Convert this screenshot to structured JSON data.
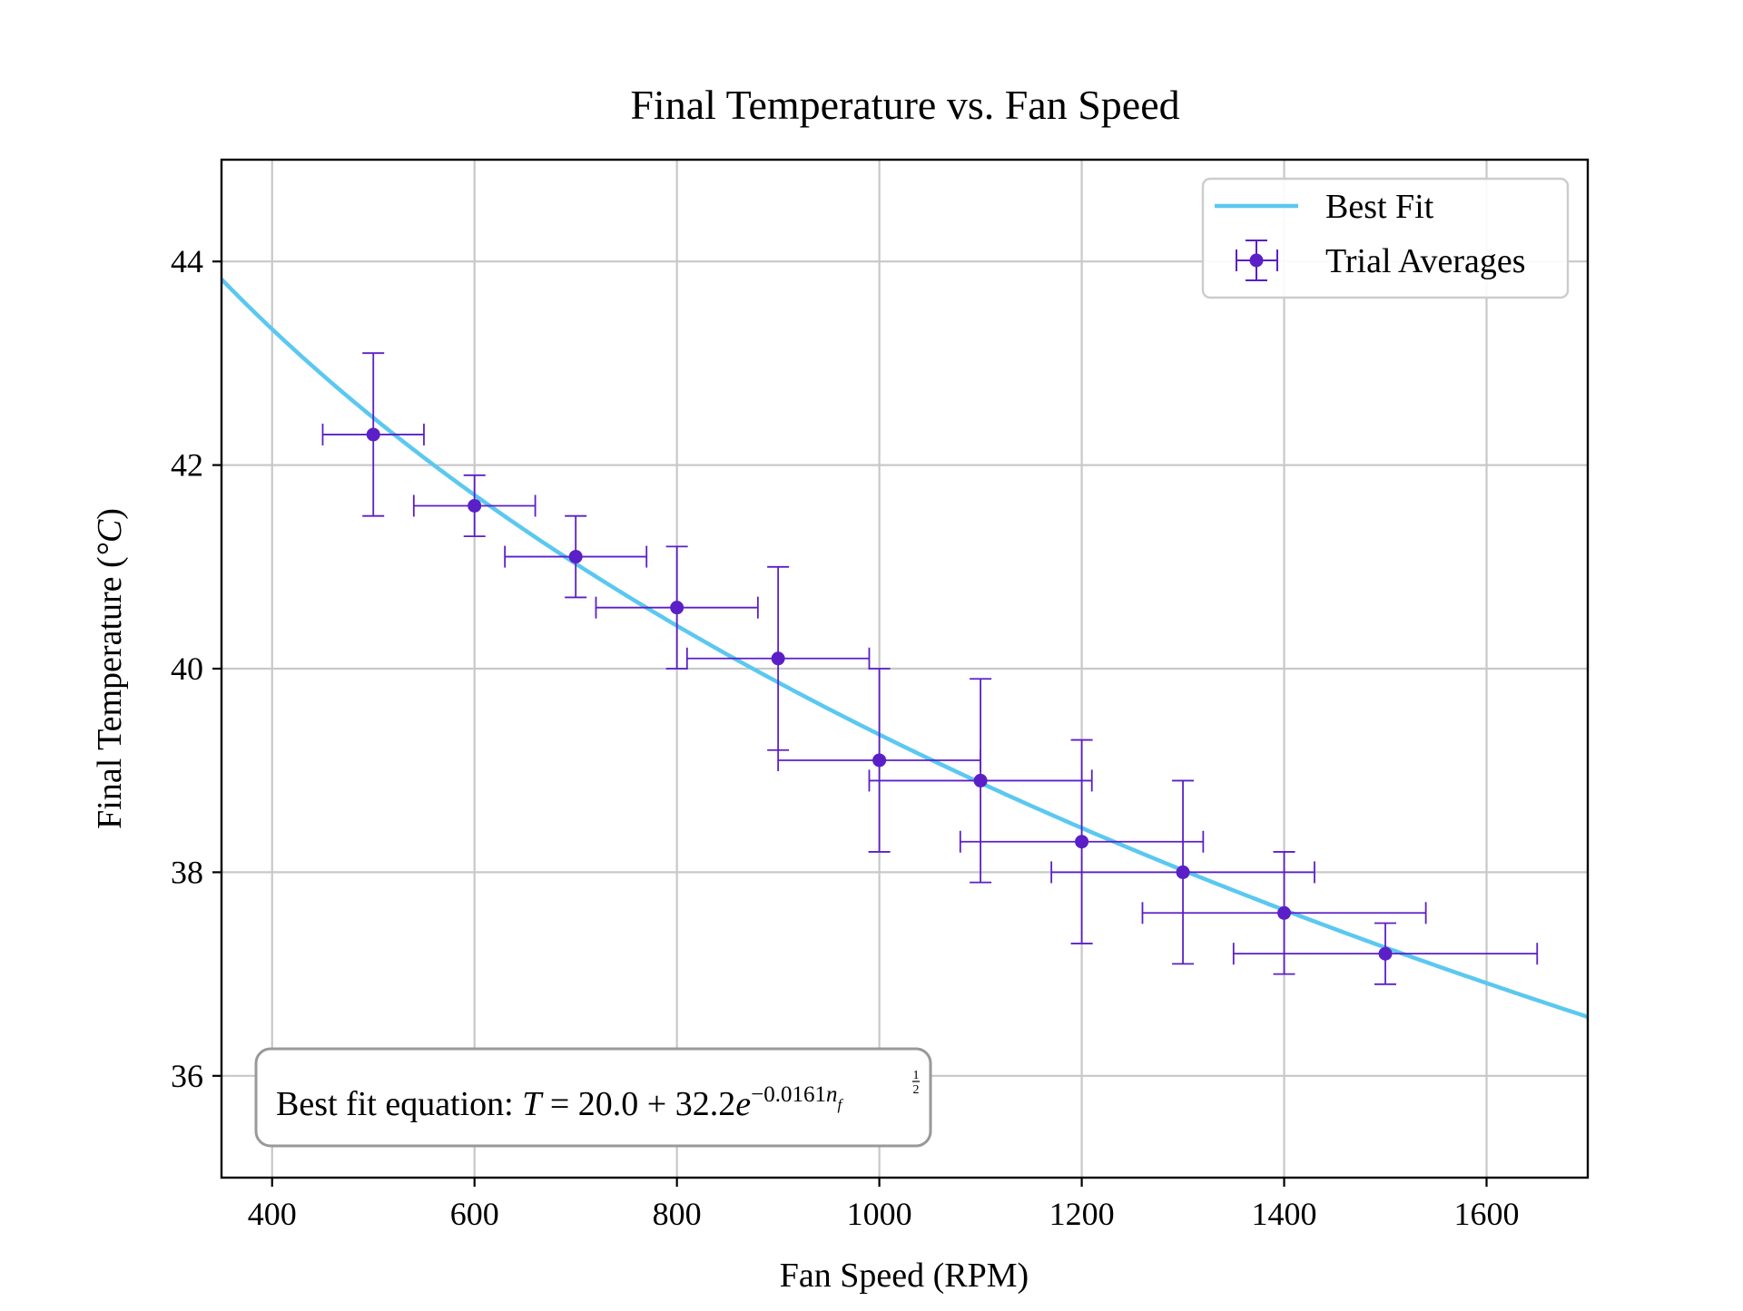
{
  "chart_data": {
    "type": "scatter",
    "title": "Final Temperature vs. Fan Speed",
    "xlabel": "Fan Speed (RPM)",
    "ylabel_main": "Final Temperature (",
    "ylabel_unit": "°C",
    "ylabel_end": ")",
    "xlim": [
      350,
      1700
    ],
    "ylim": [
      35,
      45
    ],
    "xticks": [
      400,
      600,
      800,
      1000,
      1200,
      1400,
      1600
    ],
    "yticks": [
      36,
      38,
      40,
      42,
      44
    ],
    "grid": true,
    "legend_position": "top-right",
    "series": [
      {
        "name": "Best Fit",
        "kind": "line",
        "color": "#5bc8f0",
        "equation": {
          "offset": 20.0,
          "amplitude": 32.2,
          "rate": 0.0161,
          "exponent": 0.5
        }
      },
      {
        "name": "Trial Averages",
        "kind": "errorbar",
        "color": "#5b1fc7",
        "points": [
          {
            "x": 500,
            "y": 42.3,
            "xerr": 50,
            "yerr_low": 0.8,
            "yerr_high": 0.8
          },
          {
            "x": 600,
            "y": 41.6,
            "xerr": 60,
            "yerr_low": 0.3,
            "yerr_high": 0.3
          },
          {
            "x": 700,
            "y": 41.1,
            "xerr": 70,
            "yerr_low": 0.4,
            "yerr_high": 0.4
          },
          {
            "x": 800,
            "y": 40.6,
            "xerr": 80,
            "yerr_low": 0.6,
            "yerr_high": 0.6
          },
          {
            "x": 900,
            "y": 40.1,
            "xerr": 90,
            "yerr_low": 0.9,
            "yerr_high": 0.9
          },
          {
            "x": 1000,
            "y": 39.1,
            "xerr": 100,
            "yerr_low": 0.9,
            "yerr_high": 0.9
          },
          {
            "x": 1100,
            "y": 38.9,
            "xerr": 110,
            "yerr_low": 1.0,
            "yerr_high": 1.0
          },
          {
            "x": 1200,
            "y": 38.3,
            "xerr": 120,
            "yerr_low": 1.0,
            "yerr_high": 1.0
          },
          {
            "x": 1300,
            "y": 38.0,
            "xerr": 130,
            "yerr_low": 0.9,
            "yerr_high": 0.9
          },
          {
            "x": 1400,
            "y": 37.6,
            "xerr": 140,
            "yerr_low": 0.6,
            "yerr_high": 0.6
          },
          {
            "x": 1500,
            "y": 37.2,
            "xerr": 150,
            "yerr_low": 0.3,
            "yerr_high": 0.3
          }
        ]
      }
    ],
    "annotation": {
      "prefix": "Best fit equation: ",
      "var": "T",
      "eq": " = 20.0 + 32.2",
      "base": "e",
      "exp": "−0.0161",
      "exp_var": "n",
      "exp_sub": "f",
      "exp_sup_num": "1",
      "exp_sup_den": "2"
    }
  }
}
